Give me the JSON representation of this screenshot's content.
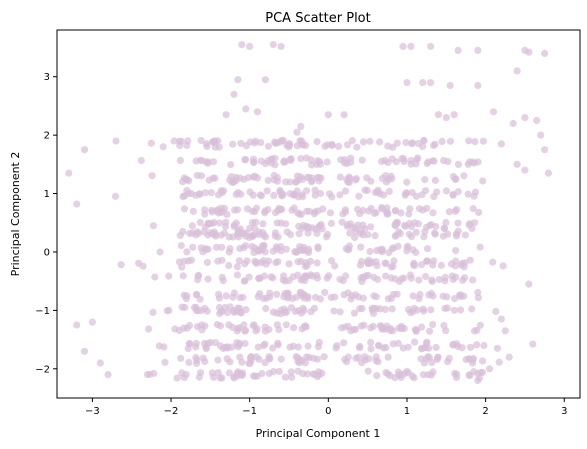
{
  "chart_data": {
    "type": "scatter",
    "title": "PCA Scatter Plot",
    "xlabel": "Principal Component 1",
    "ylabel": "Principal Component 2",
    "xlim": [
      -3.45,
      3.2
    ],
    "ylim": [
      -2.5,
      3.8
    ],
    "xticks": [
      -3,
      -2,
      -1,
      0,
      1,
      2,
      3
    ],
    "yticks": [
      -2,
      -1,
      0,
      1,
      2,
      3
    ],
    "grid": false,
    "point_color": "#d8bfd8",
    "point_opacity": 0.7,
    "bands": [
      -2.1,
      -1.85,
      -1.6,
      -1.3,
      -1.0,
      -0.75,
      -0.45,
      -0.2,
      0.05,
      0.3,
      0.45,
      0.7,
      1.0,
      1.25,
      1.55,
      1.85
    ],
    "outliers": [
      [
        -1.1,
        3.55
      ],
      [
        -1.0,
        3.52
      ],
      [
        -0.7,
        3.55
      ],
      [
        -0.6,
        3.52
      ],
      [
        -0.8,
        2.95
      ],
      [
        -1.15,
        2.95
      ],
      [
        -1.2,
        2.7
      ],
      [
        -1.05,
        2.45
      ],
      [
        -0.9,
        2.4
      ],
      [
        -1.3,
        2.35
      ],
      [
        0.95,
        3.52
      ],
      [
        1.05,
        3.52
      ],
      [
        1.3,
        3.52
      ],
      [
        1.65,
        3.45
      ],
      [
        1.9,
        3.45
      ],
      [
        2.5,
        3.45
      ],
      [
        2.55,
        3.42
      ],
      [
        2.75,
        3.4
      ],
      [
        2.4,
        3.1
      ],
      [
        1.2,
        2.9
      ],
      [
        1.3,
        2.9
      ],
      [
        1.0,
        2.9
      ],
      [
        1.55,
        2.85
      ],
      [
        1.9,
        2.85
      ],
      [
        2.1,
        2.4
      ],
      [
        2.5,
        2.3
      ],
      [
        2.65,
        2.25
      ],
      [
        2.7,
        2.0
      ],
      [
        2.75,
        1.75
      ],
      [
        2.35,
        2.2
      ],
      [
        -0.4,
        2.05
      ],
      [
        -0.35,
        2.15
      ],
      [
        0.0,
        2.35
      ],
      [
        0.2,
        2.35
      ],
      [
        1.4,
        2.35
      ],
      [
        1.5,
        2.3
      ],
      [
        1.6,
        2.35
      ],
      [
        -3.1,
        1.75
      ],
      [
        -3.3,
        1.35
      ],
      [
        -3.2,
        0.82
      ],
      [
        2.8,
        1.35
      ],
      [
        2.4,
        1.5
      ],
      [
        2.2,
        1.85
      ],
      [
        2.5,
        1.4
      ],
      [
        2.55,
        -0.55
      ],
      [
        2.2,
        -1.15
      ],
      [
        2.25,
        -1.35
      ],
      [
        2.15,
        -1.65
      ],
      [
        2.3,
        -1.8
      ],
      [
        2.05,
        -2.0
      ],
      [
        1.9,
        -2.2
      ],
      [
        1.85,
        -2.05
      ],
      [
        -2.9,
        -1.9
      ],
      [
        -3.1,
        -1.7
      ],
      [
        -2.8,
        -2.1
      ],
      [
        -2.3,
        -2.1
      ],
      [
        -3.2,
        -1.25
      ],
      [
        -3.0,
        -1.2
      ],
      [
        -2.1,
        1.8
      ],
      [
        -2.7,
        1.9
      ]
    ],
    "seed": 7,
    "band_count_per_band": 70
  }
}
